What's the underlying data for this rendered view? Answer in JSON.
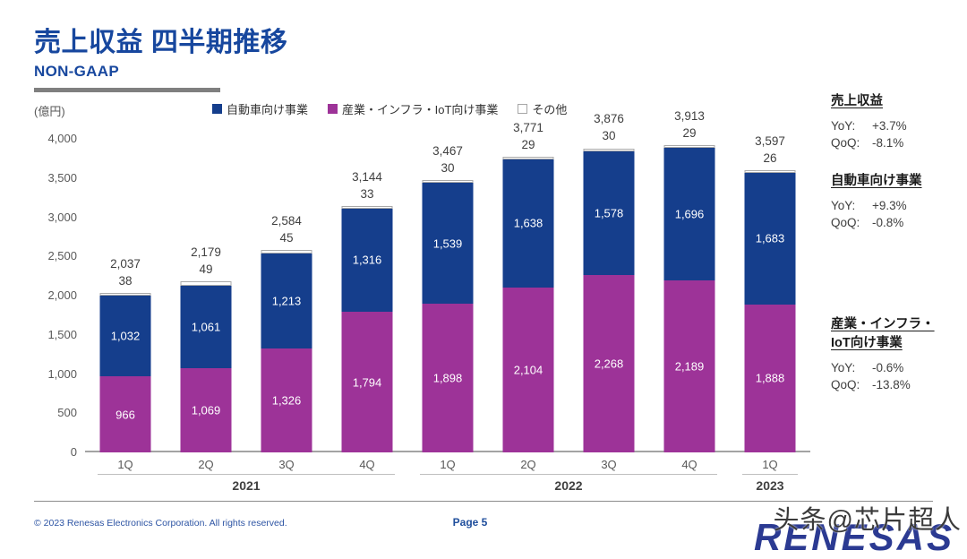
{
  "page": {
    "title": "売上収益 四半期推移",
    "subtitle": "NON-GAAP",
    "unit_label": "(億円)",
    "footer": {
      "copyright": "© 2023 Renesas Electronics Corporation. All rights reserved.",
      "page_number": "Page 5"
    },
    "watermark": "头条@芯片超人",
    "logo_text": "RENESAS"
  },
  "colors": {
    "title_blue": "#17479e",
    "automotive": "#153e8c",
    "industrial": "#9d3398",
    "others": "#ffffff"
  },
  "legend": [
    {
      "label": "自動車向け事業",
      "color": "#153e8c"
    },
    {
      "label": "産業・インフラ・IoT向け事業",
      "color": "#9d3398"
    },
    {
      "label": "その他",
      "color": "#ffffff"
    }
  ],
  "chart_data": {
    "type": "bar",
    "stacked": true,
    "unit": "億円",
    "title": "売上収益 四半期推移 NON-GAAP",
    "categories": [
      "1Q",
      "2Q",
      "3Q",
      "4Q",
      "1Q",
      "2Q",
      "3Q",
      "4Q",
      "1Q"
    ],
    "groups": [
      {
        "year": "2021",
        "count": 4
      },
      {
        "year": "2022",
        "count": 4
      },
      {
        "year": "2023",
        "count": 1
      }
    ],
    "series": [
      {
        "name": "産業・インフラ・IoT向け事業",
        "color": "#9d3398",
        "values": [
          966,
          1069,
          1326,
          1794,
          1898,
          2104,
          2268,
          2189,
          1888
        ]
      },
      {
        "name": "自動車向け事業",
        "color": "#153e8c",
        "values": [
          1032,
          1061,
          1213,
          1316,
          1539,
          1638,
          1578,
          1696,
          1683
        ]
      },
      {
        "name": "その他",
        "color": "#ffffff",
        "values": [
          38,
          49,
          45,
          33,
          30,
          29,
          30,
          29,
          26
        ]
      }
    ],
    "totals": [
      2037,
      2179,
      2584,
      3144,
      3467,
      3771,
      3876,
      3913,
      3597
    ],
    "ylim": [
      0,
      4000
    ],
    "ytick_values": [
      4000,
      3500,
      3000,
      2500,
      2000,
      1500,
      1000,
      500,
      0
    ],
    "ytick_labels": [
      "4,000",
      "3,500",
      "3,000",
      "2,500",
      "2,000",
      "1,500",
      "1,000",
      "500",
      "0"
    ],
    "grid": false,
    "legend_position": "top"
  },
  "summary_panel": {
    "sections": [
      {
        "title": "売上収益",
        "title2": "",
        "yoy_label": "YoY:",
        "yoy_value": "+3.7%",
        "qoq_label": "QoQ:",
        "qoq_value": "-8.1%"
      },
      {
        "title": "自動車向け事業",
        "title2": "",
        "yoy_label": "YoY:",
        "yoy_value": "+9.3%",
        "qoq_label": "QoQ:",
        "qoq_value": "-0.8%"
      },
      {
        "title": "産業・インフラ・",
        "title2": "IoT向け事業",
        "yoy_label": "YoY:",
        "yoy_value": "-0.6%",
        "qoq_label": "QoQ:",
        "qoq_value": "-13.8%"
      }
    ]
  }
}
